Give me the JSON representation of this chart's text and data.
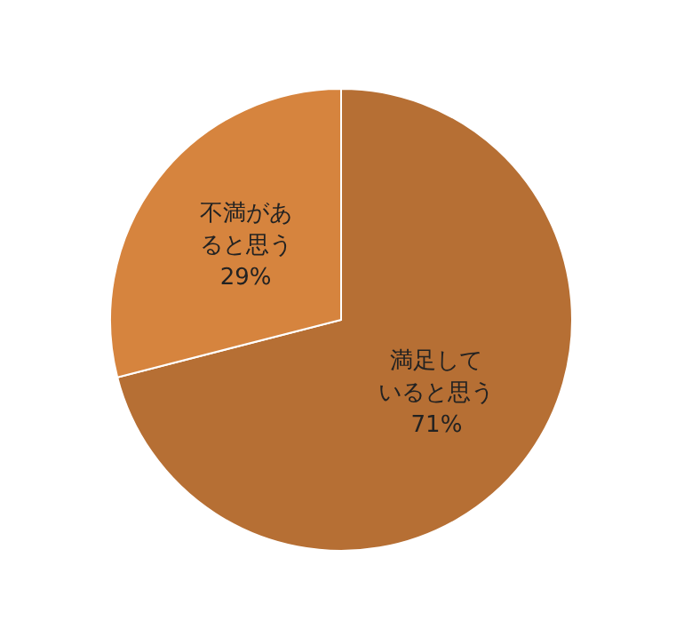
{
  "chart_data": {
    "type": "pie",
    "categories": [
      "満足していると思う",
      "不満があると思う"
    ],
    "values": [
      71,
      29
    ],
    "colors": [
      "#b66f34",
      "#d6843e"
    ],
    "value_labels": [
      "71%",
      "29%"
    ]
  }
}
